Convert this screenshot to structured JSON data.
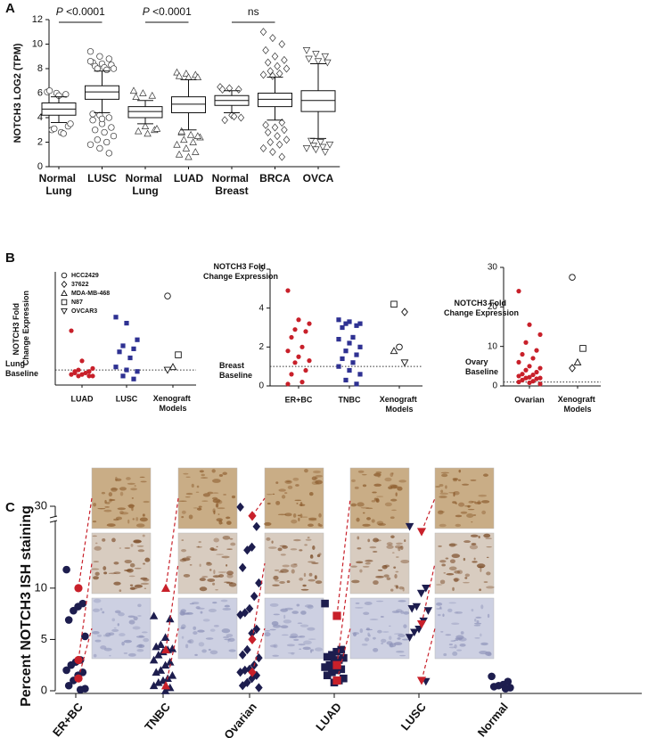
{
  "chart_data": [
    {
      "panel": "A",
      "type": "box",
      "ylabel": "NOTCH3 LOG2 (TPM)",
      "categories": [
        "Normal Lung",
        "LUSC",
        "Normal Lung",
        "LUAD",
        "Normal Breast",
        "BRCA",
        "OVCA"
      ],
      "markers": [
        "circle",
        "circle",
        "triangle",
        "triangle",
        "diamond",
        "diamond",
        "triangle-down"
      ],
      "boxes": [
        {
          "low": 3.6,
          "q1": 4.2,
          "median": 4.7,
          "q3": 5.2,
          "high": 5.7
        },
        {
          "low": 4.4,
          "q1": 5.5,
          "median": 6.1,
          "q3": 6.6,
          "high": 7.8
        },
        {
          "low": 3.5,
          "q1": 4.0,
          "median": 4.5,
          "q3": 4.9,
          "high": 5.4
        },
        {
          "low": 3.0,
          "q1": 4.4,
          "median": 5.1,
          "q3": 5.7,
          "high": 7.1
        },
        {
          "low": 4.4,
          "q1": 5.0,
          "median": 5.4,
          "q3": 5.8,
          "high": 6.2
        },
        {
          "low": 3.8,
          "q1": 4.9,
          "median": 5.5,
          "q3": 6.0,
          "high": 7.3
        },
        {
          "low": 2.3,
          "q1": 4.5,
          "median": 5.4,
          "q3": 6.2,
          "high": 8.4
        }
      ],
      "points": [
        [
          6.1,
          6.0,
          5.9,
          6.2,
          5.8,
          3.3,
          3.0,
          2.8,
          3.5,
          3.1,
          2.7
        ],
        [
          9.4,
          9.0,
          8.8,
          8.5,
          8.4,
          8.3,
          8.2,
          8.1,
          8.0,
          8.0,
          7.9,
          8.6,
          4.2,
          4.0,
          3.8,
          3.5,
          3.2,
          3.0,
          2.8,
          2.5,
          2.2,
          2.0,
          1.8,
          1.5,
          1.1,
          4.3,
          3.9
        ],
        [
          6.2,
          6.0,
          5.8,
          5.7,
          3.3,
          3.0,
          2.9,
          2.7,
          3.1
        ],
        [
          7.7,
          7.6,
          7.5,
          7.4,
          7.3,
          7.3,
          2.8,
          2.6,
          2.4,
          2.2,
          2.0,
          1.8,
          1.5,
          1.2,
          1.0,
          0.8,
          2.5,
          2.9
        ],
        [
          6.5,
          6.4,
          6.3,
          6.3,
          4.2,
          4.0,
          3.8,
          4.1
        ],
        [
          11.0,
          10.5,
          10.0,
          9.5,
          9.0,
          8.7,
          8.5,
          8.2,
          8.0,
          7.8,
          7.6,
          7.5,
          7.4,
          3.6,
          3.4,
          3.2,
          3.0,
          2.8,
          2.5,
          2.2,
          2.0,
          1.8,
          1.5,
          1.2,
          0.8
        ],
        [
          9.5,
          9.2,
          9.0,
          8.8,
          8.6,
          8.5,
          2.1,
          2.0,
          1.8,
          1.7,
          1.6,
          1.5,
          1.4,
          1.2
        ]
      ],
      "annotations": [
        {
          "text": "P <0.0001",
          "categories": [
            0,
            1
          ]
        },
        {
          "text": "P <0.0001",
          "categories": [
            2,
            3
          ]
        },
        {
          "text": "ns",
          "categories": [
            4,
            5
          ]
        }
      ],
      "ylim": [
        0,
        12
      ],
      "yticks": [
        0,
        2,
        4,
        6,
        8,
        10,
        12
      ]
    },
    {
      "panel": "B",
      "type": "dot",
      "ylabel": "NOTCH3 Fold Change Expression",
      "baseline": 1,
      "baseline_label": "Lung Baseline",
      "categories": [
        "LUAD",
        "LUSC",
        "Xenograft Models"
      ],
      "groups": [
        {
          "color": "#c8202a",
          "marker": "circle",
          "values": [
            3.6,
            1.6,
            1.1,
            1.0,
            0.9,
            0.9,
            0.8,
            0.7,
            0.7,
            0.6,
            0.6,
            0.6,
            0.8
          ]
        },
        {
          "color": "#2e3192",
          "marker": "square",
          "values": [
            4.5,
            4.1,
            3.0,
            2.6,
            2.4,
            2.2,
            1.8,
            1.2,
            1.0,
            0.9,
            0.6,
            0.4
          ]
        }
      ],
      "xenografts": [
        {
          "marker": "circle",
          "value": 5.9
        },
        {
          "marker": "square",
          "value": 2.0
        },
        {
          "marker": "triangle",
          "value": 1.2
        },
        {
          "marker": "triangle-down",
          "value": 1.0
        }
      ],
      "legend": [
        {
          "name": "HCC2429",
          "marker": "circle"
        },
        {
          "name": "37622",
          "marker": "diamond"
        },
        {
          "name": "MDA-MB-468",
          "marker": "triangle"
        },
        {
          "name": "N87",
          "marker": "square"
        },
        {
          "name": "OVCAR3",
          "marker": "triangle-down"
        }
      ],
      "ylim": [
        0,
        7.5
      ],
      "yticks": []
    },
    {
      "type": "dot",
      "ylabel": "NOTCH3 Fold Change Expression",
      "baseline": 1,
      "baseline_label": "Breast Baseline",
      "categories": [
        "ER+BC",
        "TNBC",
        "Xenograft Models"
      ],
      "groups": [
        {
          "color": "#c8202a",
          "marker": "circle",
          "values": [
            4.9,
            3.4,
            3.2,
            2.9,
            2.8,
            2.5,
            2.0,
            1.8,
            1.5,
            1.3,
            1.2,
            0.8,
            0.6,
            0.2,
            0.1
          ]
        },
        {
          "color": "#2e3192",
          "marker": "square",
          "values": [
            3.4,
            3.3,
            3.2,
            3.2,
            3.1,
            3.0,
            2.5,
            2.4,
            2.2,
            2.0,
            1.8,
            1.6,
            1.4,
            1.2,
            1.0,
            0.8,
            0.6,
            0.3,
            0.1
          ]
        }
      ],
      "xenografts": [
        {
          "marker": "square",
          "value": 4.2
        },
        {
          "marker": "diamond",
          "value": 3.8
        },
        {
          "marker": "circle",
          "value": 2.0
        },
        {
          "marker": "triangle",
          "value": 1.8
        },
        {
          "marker": "triangle-down",
          "value": 1.2
        }
      ],
      "ylim": [
        0,
        6
      ],
      "yticks": [
        0,
        2,
        4,
        6
      ]
    },
    {
      "type": "dot",
      "ylabel": "NOTCH3 Fold Change Expression",
      "baseline": 1,
      "baseline_label": "Ovary Baseline",
      "categories": [
        "Ovarian",
        "Xenograft Models"
      ],
      "groups": [
        {
          "color": "#c8202a",
          "marker": "circle",
          "values": [
            24,
            15.5,
            13,
            11,
            9,
            8,
            7,
            6,
            5,
            4.5,
            4,
            3.5,
            3,
            2.8,
            2.5,
            2.2,
            2,
            2,
            1.8,
            1.5,
            1.2,
            1,
            0.8,
            0.5
          ]
        }
      ],
      "xenografts": [
        {
          "marker": "circle",
          "value": 27.5
        },
        {
          "marker": "square",
          "value": 9.5
        },
        {
          "marker": "triangle",
          "value": 6
        },
        {
          "marker": "diamond",
          "value": 4.5
        }
      ],
      "ylim": [
        0,
        30
      ],
      "yticks": [
        0,
        10,
        20,
        30
      ]
    },
    {
      "panel": "C",
      "type": "scatter-break",
      "ylabel": "Percent NOTCH3 ISH staining",
      "categories": [
        "ER+BC",
        "TNBC",
        "Ovarian",
        "LUAD",
        "LUSC",
        "Normal"
      ],
      "markers": [
        "circle",
        "triangle",
        "diamond",
        "square",
        "triangle-down",
        "circle"
      ],
      "color": "#1d1d4e",
      "highlight_color": "#c8202a",
      "values": [
        [
          11.8,
          8.5,
          8.2,
          7.8,
          6.9,
          5.3,
          3.0,
          2.8,
          2.5,
          2.0,
          1.8,
          1.5,
          1.0,
          0.5,
          0.2,
          0.1
        ],
        [
          7.3,
          7.0,
          5.2,
          4.5,
          4.3,
          4.1,
          4.0,
          3.8,
          3.5,
          3.0,
          2.8,
          2.5,
          2.0,
          1.8,
          1.5,
          1.2,
          1.0,
          0.8,
          0.5,
          0.3,
          0
        ],
        [
          29,
          16,
          14,
          13.7,
          12,
          10.5,
          9.2,
          8,
          7.6,
          7.4,
          6,
          5.6,
          4,
          3.5,
          3.2,
          2.5,
          2.1,
          2,
          1.8,
          1.5,
          1.2,
          0.8,
          0.5,
          0.3
        ],
        [
          8.5,
          4.0,
          3.8,
          3.5,
          3.3,
          3.2,
          3.0,
          2.8,
          2.5,
          2.3,
          2.1,
          2.0,
          1.8,
          1.5,
          1.2,
          1.0,
          0.8
        ],
        [
          16,
          10,
          9.5,
          8.2,
          8,
          7.8,
          6.8,
          6,
          5.7,
          5.2,
          0.9
        ],
        [
          1.4,
          0.9,
          0.6,
          0.5,
          0.4,
          0.3,
          0.2
        ]
      ],
      "highlights": [
        [
          10,
          3,
          1.2
        ],
        [
          10,
          4,
          0.5
        ],
        [
          18.3,
          5,
          1.8
        ],
        [
          7.3,
          2.5,
          1
        ],
        [
          15.5,
          6.5,
          1
        ],
        []
      ],
      "ylim": [
        0,
        16.5
      ],
      "yticks": [
        0,
        5,
        10
      ],
      "ylim_upper": [
        17,
        30
      ],
      "yticks_upper": [
        30
      ]
    }
  ]
}
